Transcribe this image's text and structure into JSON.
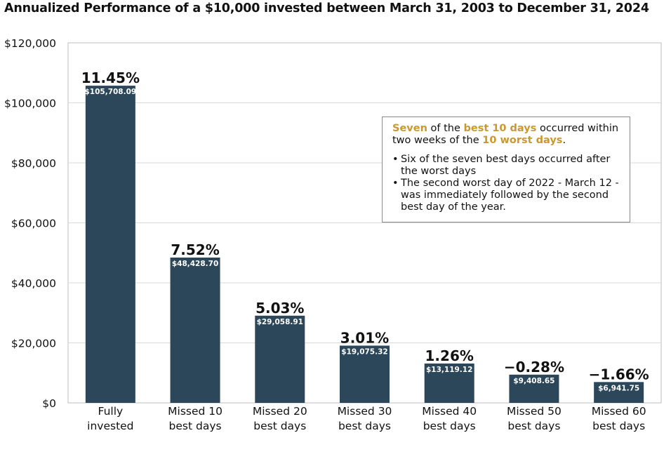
{
  "chart_data": {
    "type": "bar",
    "title": "Annualized Performance of a $10,000 invested between March 31, 2003 to December 31, 2024",
    "categories": [
      [
        "Fully",
        "invested"
      ],
      [
        "Missed 10",
        "best days"
      ],
      [
        "Missed 20",
        "best days"
      ],
      [
        "Missed 30",
        "best days"
      ],
      [
        "Missed 40",
        "best days"
      ],
      [
        "Missed 50",
        "best days"
      ],
      [
        "Missed 60",
        "best days"
      ]
    ],
    "values": [
      105708.09,
      48428.7,
      29058.91,
      19075.32,
      13119.12,
      9408.65,
      6941.75
    ],
    "value_labels": [
      "$105,708.09",
      "$48,428.70",
      "$29,058.91",
      "$19,075.32",
      "$13,119.12",
      "$9,408.65",
      "$6,941.75"
    ],
    "percent_labels": [
      "11.45%",
      "7.52%",
      "5.03%",
      "3.01%",
      "1.26%",
      "−0.28%",
      "−1.66%"
    ],
    "ylim": [
      0,
      120000
    ],
    "yticks": [
      0,
      20000,
      40000,
      60000,
      80000,
      100000,
      120000
    ],
    "ytick_labels": [
      "$0",
      "$20,000",
      "$40,000",
      "$60,000",
      "$80,000",
      "$100,000",
      "$120,000"
    ],
    "xlabel": "",
    "ylabel": "",
    "grid": true,
    "bar_color": "#2c4759"
  },
  "note": {
    "lead_parts": [
      {
        "text": "Seven",
        "highlight": true
      },
      {
        "text": " of the ",
        "highlight": false
      },
      {
        "text": "best 10 days",
        "highlight": true
      },
      {
        "text": " occurred within two weeks of the ",
        "highlight": false
      },
      {
        "text": "10 worst days",
        "highlight": true
      },
      {
        "text": ".",
        "highlight": false
      }
    ],
    "bullet_glyph": "•",
    "bullets": [
      "Six of the seven best days occurred after the worst days",
      "The second worst day of 2022 - March 12 - was immediately followed by the second best day   of the year."
    ],
    "highlight_color": "#c9992f"
  }
}
